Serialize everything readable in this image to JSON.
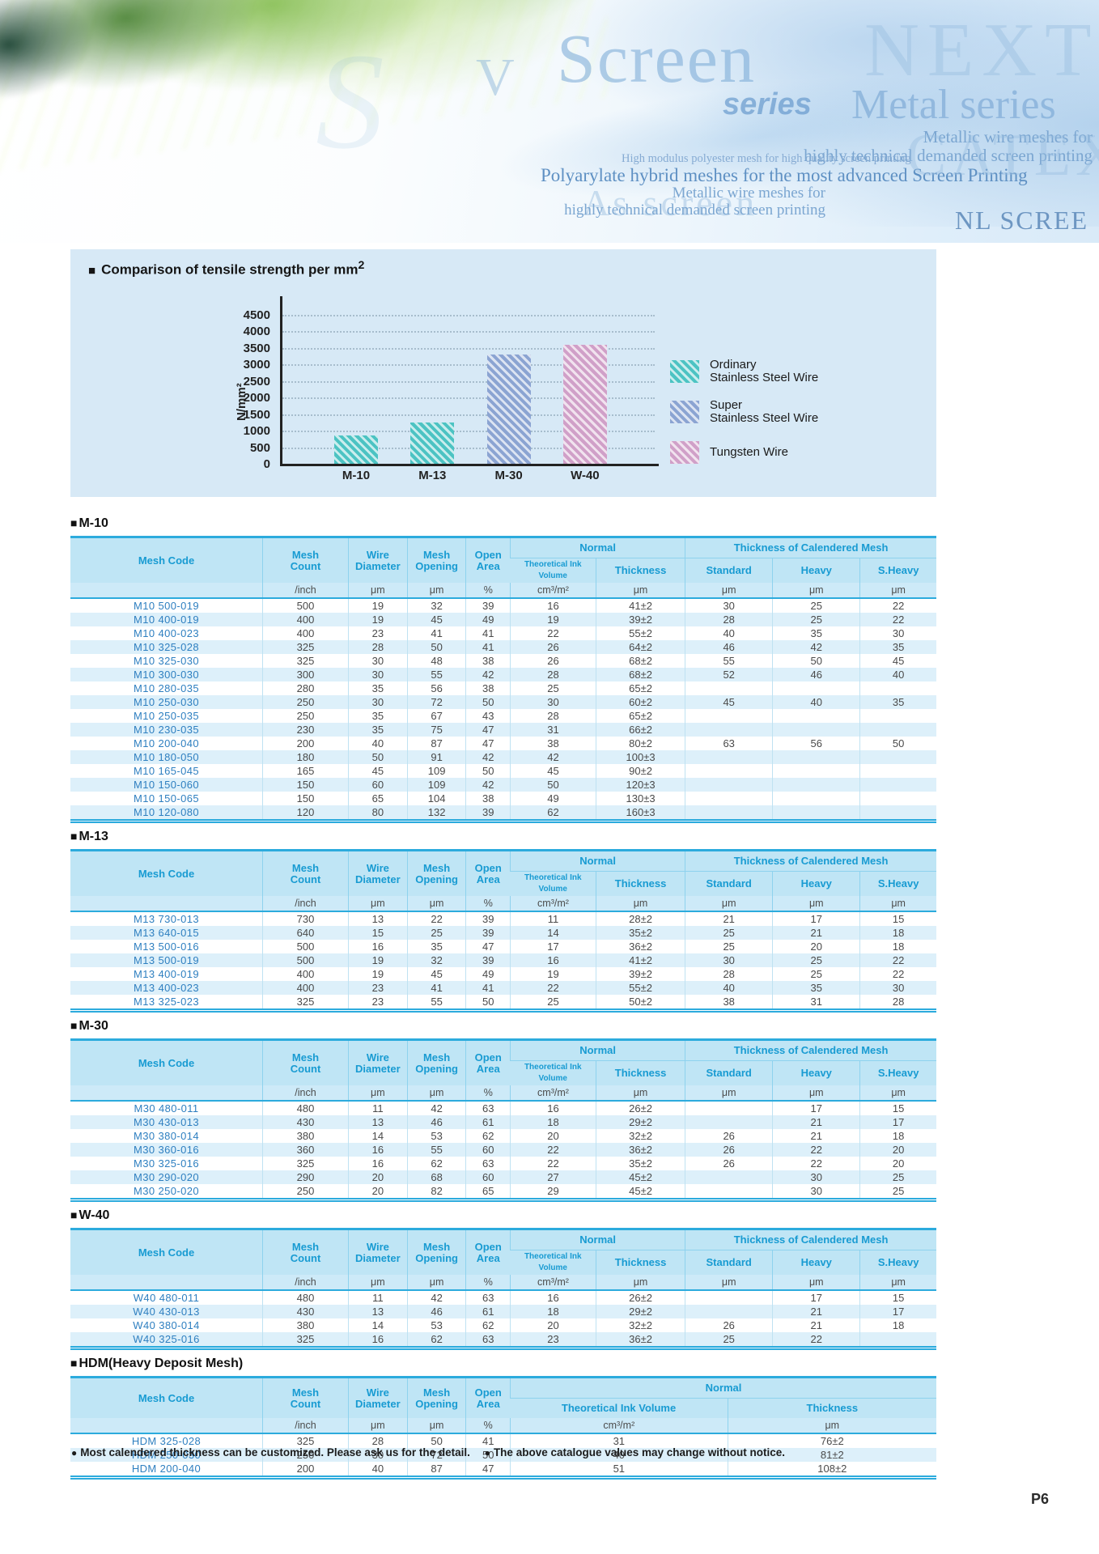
{
  "page_number": "P6",
  "bullets": {
    "square": "■",
    "dot": "●"
  },
  "banner": {
    "s_swoosh": "S",
    "v": "V",
    "screen": "Screen",
    "series": "series",
    "next": "NEXT",
    "metal_series": "Metal series",
    "metallic_lines": [
      "Metallic wire meshes for",
      "highly technical demanded screen printing"
    ],
    "high_modulus": "High modulus polyester mesh for high quality screen printing",
    "polyarylate": "Polyarylate hybrid meshes for the most advanced Screen Printing",
    "as_screen": "As screen",
    "catex": "CATEX",
    "nl_screen": "NL SCREE"
  },
  "chart_data": {
    "type": "bar",
    "title_main": "Comparison of tensile strength per mm",
    "title_sup": "2",
    "ylabel": "N/mm²",
    "ylim": [
      0,
      4750
    ],
    "ytick_step": 500,
    "ymax_tick": 4500,
    "grid": true,
    "legend_position": "right",
    "categories": [
      "M-10",
      "M-13",
      "M-30",
      "W-40"
    ],
    "values": [
      850,
      1250,
      3300,
      3600
    ],
    "bar_colors": [
      "#4cc3c3",
      "#4cc3c3",
      "#8ba4d2",
      "#d0a0c8"
    ],
    "legend": [
      {
        "lines": [
          "Ordinary",
          "Stainless Steel Wire"
        ],
        "color": "#4cc3c3"
      },
      {
        "lines": [
          "Super",
          "Stainless Steel Wire"
        ],
        "color": "#8ba4d2"
      },
      {
        "lines": [
          "Tungsten Wire"
        ],
        "color": "#d0a0c8"
      }
    ]
  },
  "tables": [
    {
      "title": "M-10",
      "lead_columns": [
        [
          "Mesh Code"
        ],
        [
          "Mesh",
          "Count"
        ],
        [
          "Wire",
          "Diameter"
        ],
        [
          "Mesh",
          "Opening"
        ],
        [
          "Open",
          "Area"
        ]
      ],
      "groups": [
        {
          "label": "Normal",
          "columns": [
            [
              "Theoretical Ink Volume"
            ],
            [
              "Thickness"
            ]
          ]
        },
        {
          "label": "Thickness of Calendered Mesh",
          "columns": [
            [
              "Standard"
            ],
            [
              "Heavy"
            ],
            [
              "S.Heavy"
            ]
          ]
        }
      ],
      "small_subs": [
        0
      ],
      "units": [
        "",
        "/inch",
        "μm",
        "μm",
        "%",
        "cm³/m²",
        "μm",
        "μm",
        "μm",
        "μm"
      ],
      "col_widths": [
        "22.2%",
        "9.9%",
        "6.8%",
        "6.8%",
        "5.1%",
        "9.9%",
        "10.3%",
        "10.1%",
        "10.1%",
        "8.8%"
      ],
      "rows": [
        [
          "M10 500-019",
          "500",
          "19",
          "32",
          "39",
          "16",
          "41±2",
          "30",
          "25",
          "22"
        ],
        [
          "M10 400-019",
          "400",
          "19",
          "45",
          "49",
          "19",
          "39±2",
          "28",
          "25",
          "22"
        ],
        [
          "M10 400-023",
          "400",
          "23",
          "41",
          "41",
          "22",
          "55±2",
          "40",
          "35",
          "30"
        ],
        [
          "M10 325-028",
          "325",
          "28",
          "50",
          "41",
          "26",
          "64±2",
          "46",
          "42",
          "35"
        ],
        [
          "M10 325-030",
          "325",
          "30",
          "48",
          "38",
          "26",
          "68±2",
          "55",
          "50",
          "45"
        ],
        [
          "M10 300-030",
          "300",
          "30",
          "55",
          "42",
          "28",
          "68±2",
          "52",
          "46",
          "40"
        ],
        [
          "M10 280-035",
          "280",
          "35",
          "56",
          "38",
          "25",
          "65±2",
          "",
          "",
          ""
        ],
        [
          "M10 250-030",
          "250",
          "30",
          "72",
          "50",
          "30",
          "60±2",
          "45",
          "40",
          "35"
        ],
        [
          "M10 250-035",
          "250",
          "35",
          "67",
          "43",
          "28",
          "65±2",
          "",
          "",
          ""
        ],
        [
          "M10 230-035",
          "230",
          "35",
          "75",
          "47",
          "31",
          "66±2",
          "",
          "",
          ""
        ],
        [
          "M10 200-040",
          "200",
          "40",
          "87",
          "47",
          "38",
          "80±2",
          "63",
          "56",
          "50"
        ],
        [
          "M10 180-050",
          "180",
          "50",
          "91",
          "42",
          "42",
          "100±3",
          "",
          "",
          ""
        ],
        [
          "M10 165-045",
          "165",
          "45",
          "109",
          "50",
          "45",
          "90±2",
          "",
          "",
          ""
        ],
        [
          "M10 150-060",
          "150",
          "60",
          "109",
          "42",
          "50",
          "120±3",
          "",
          "",
          ""
        ],
        [
          "M10 150-065",
          "150",
          "65",
          "104",
          "38",
          "49",
          "130±3",
          "",
          "",
          ""
        ],
        [
          "M10 120-080",
          "120",
          "80",
          "132",
          "39",
          "62",
          "160±3",
          "",
          "",
          ""
        ]
      ]
    },
    {
      "title": "M-13",
      "lead_columns": [
        [
          "Mesh Code"
        ],
        [
          "Mesh",
          "Count"
        ],
        [
          "Wire",
          "Diameter"
        ],
        [
          "Mesh",
          "Opening"
        ],
        [
          "Open",
          "Area"
        ]
      ],
      "groups": [
        {
          "label": "Normal",
          "columns": [
            [
              "Theoretical Ink Volume"
            ],
            [
              "Thickness"
            ]
          ]
        },
        {
          "label": "Thickness of Calendered Mesh",
          "columns": [
            [
              "Standard"
            ],
            [
              "Heavy"
            ],
            [
              "S.Heavy"
            ]
          ]
        }
      ],
      "small_subs": [
        0
      ],
      "units": [
        "",
        "/inch",
        "μm",
        "μm",
        "%",
        "cm³/m²",
        "μm",
        "μm",
        "μm",
        "μm"
      ],
      "col_widths": [
        "22.2%",
        "9.9%",
        "6.8%",
        "6.8%",
        "5.1%",
        "9.9%",
        "10.3%",
        "10.1%",
        "10.1%",
        "8.8%"
      ],
      "rows": [
        [
          "M13 730-013",
          "730",
          "13",
          "22",
          "39",
          "11",
          "28±2",
          "21",
          "17",
          "15"
        ],
        [
          "M13 640-015",
          "640",
          "15",
          "25",
          "39",
          "14",
          "35±2",
          "25",
          "21",
          "18"
        ],
        [
          "M13 500-016",
          "500",
          "16",
          "35",
          "47",
          "17",
          "36±2",
          "25",
          "20",
          "18"
        ],
        [
          "M13 500-019",
          "500",
          "19",
          "32",
          "39",
          "16",
          "41±2",
          "30",
          "25",
          "22"
        ],
        [
          "M13 400-019",
          "400",
          "19",
          "45",
          "49",
          "19",
          "39±2",
          "28",
          "25",
          "22"
        ],
        [
          "M13 400-023",
          "400",
          "23",
          "41",
          "41",
          "22",
          "55±2",
          "40",
          "35",
          "30"
        ],
        [
          "M13 325-023",
          "325",
          "23",
          "55",
          "50",
          "25",
          "50±2",
          "38",
          "31",
          "28"
        ]
      ]
    },
    {
      "title": "M-30",
      "lead_columns": [
        [
          "Mesh Code"
        ],
        [
          "Mesh",
          "Count"
        ],
        [
          "Wire",
          "Diameter"
        ],
        [
          "Mesh",
          "Opening"
        ],
        [
          "Open",
          "Area"
        ]
      ],
      "groups": [
        {
          "label": "Normal",
          "columns": [
            [
              "Theoretical Ink Volume"
            ],
            [
              "Thickness"
            ]
          ]
        },
        {
          "label": "Thickness of Calendered Mesh",
          "columns": [
            [
              "Standard"
            ],
            [
              "Heavy"
            ],
            [
              "S.Heavy"
            ]
          ]
        }
      ],
      "small_subs": [
        0
      ],
      "units": [
        "",
        "/inch",
        "μm",
        "μm",
        "%",
        "cm³/m²",
        "μm",
        "μm",
        "μm",
        "μm"
      ],
      "col_widths": [
        "22.2%",
        "9.9%",
        "6.8%",
        "6.8%",
        "5.1%",
        "9.9%",
        "10.3%",
        "10.1%",
        "10.1%",
        "8.8%"
      ],
      "rows": [
        [
          "M30 480-011",
          "480",
          "11",
          "42",
          "63",
          "16",
          "26±2",
          "",
          "17",
          "15"
        ],
        [
          "M30 430-013",
          "430",
          "13",
          "46",
          "61",
          "18",
          "29±2",
          "",
          "21",
          "17"
        ],
        [
          "M30 380-014",
          "380",
          "14",
          "53",
          "62",
          "20",
          "32±2",
          "26",
          "21",
          "18"
        ],
        [
          "M30 360-016",
          "360",
          "16",
          "55",
          "60",
          "22",
          "36±2",
          "26",
          "22",
          "20"
        ],
        [
          "M30 325-016",
          "325",
          "16",
          "62",
          "63",
          "22",
          "35±2",
          "26",
          "22",
          "20"
        ],
        [
          "M30 290-020",
          "290",
          "20",
          "68",
          "60",
          "27",
          "45±2",
          "",
          "30",
          "25"
        ],
        [
          "M30 250-020",
          "250",
          "20",
          "82",
          "65",
          "29",
          "45±2",
          "",
          "30",
          "25"
        ]
      ]
    },
    {
      "title": "W-40",
      "lead_columns": [
        [
          "Mesh Code"
        ],
        [
          "Mesh",
          "Count"
        ],
        [
          "Wire",
          "Diameter"
        ],
        [
          "Mesh",
          "Opening"
        ],
        [
          "Open",
          "Area"
        ]
      ],
      "groups": [
        {
          "label": "Normal",
          "columns": [
            [
              "Theoretical Ink Volume"
            ],
            [
              "Thickness"
            ]
          ]
        },
        {
          "label": "Thickness of Calendered Mesh",
          "columns": [
            [
              "Standard"
            ],
            [
              "Heavy"
            ],
            [
              "S.Heavy"
            ]
          ]
        }
      ],
      "small_subs": [
        0
      ],
      "units": [
        "",
        "/inch",
        "μm",
        "μm",
        "%",
        "cm³/m²",
        "μm",
        "μm",
        "μm",
        "μm"
      ],
      "col_widths": [
        "22.2%",
        "9.9%",
        "6.8%",
        "6.8%",
        "5.1%",
        "9.9%",
        "10.3%",
        "10.1%",
        "10.1%",
        "8.8%"
      ],
      "rows": [
        [
          "W40 480-011",
          "480",
          "11",
          "42",
          "63",
          "16",
          "26±2",
          "",
          "17",
          "15"
        ],
        [
          "W40 430-013",
          "430",
          "13",
          "46",
          "61",
          "18",
          "29±2",
          "",
          "21",
          "17"
        ],
        [
          "W40 380-014",
          "380",
          "14",
          "53",
          "62",
          "20",
          "32±2",
          "26",
          "21",
          "18"
        ],
        [
          "W40 325-016",
          "325",
          "16",
          "62",
          "63",
          "23",
          "36±2",
          "25",
          "22",
          ""
        ]
      ]
    },
    {
      "title": "HDM(Heavy Deposit Mesh)",
      "lead_columns": [
        [
          "Mesh Code"
        ],
        [
          "Mesh",
          "Count"
        ],
        [
          "Wire",
          "Diameter"
        ],
        [
          "Mesh",
          "Opening"
        ],
        [
          "Open",
          "Area"
        ]
      ],
      "groups": [
        {
          "label": "Normal",
          "columns": [
            [
              "Theoretical Ink Volume"
            ],
            [
              "Thickness"
            ]
          ]
        }
      ],
      "units": [
        "",
        "/inch",
        "μm",
        "μm",
        "%",
        "cm³/m²",
        "μm"
      ],
      "col_widths": [
        "22.2%",
        "9.9%",
        "6.8%",
        "6.8%",
        "5.1%",
        "25.1%",
        "24.1%"
      ],
      "rows": [
        [
          "HDM 325-028",
          "325",
          "28",
          "50",
          "41",
          "31",
          "76±2"
        ],
        [
          "HDM 250-030",
          "250",
          "30",
          "72",
          "50",
          "40",
          "81±2"
        ],
        [
          "HDM 200-040",
          "200",
          "40",
          "87",
          "47",
          "51",
          "108±2"
        ]
      ]
    }
  ],
  "footnotes": [
    "Most calendered thickness can be customized.  Please ask us for the detail.",
    "The above catalogue values may change without notice."
  ]
}
